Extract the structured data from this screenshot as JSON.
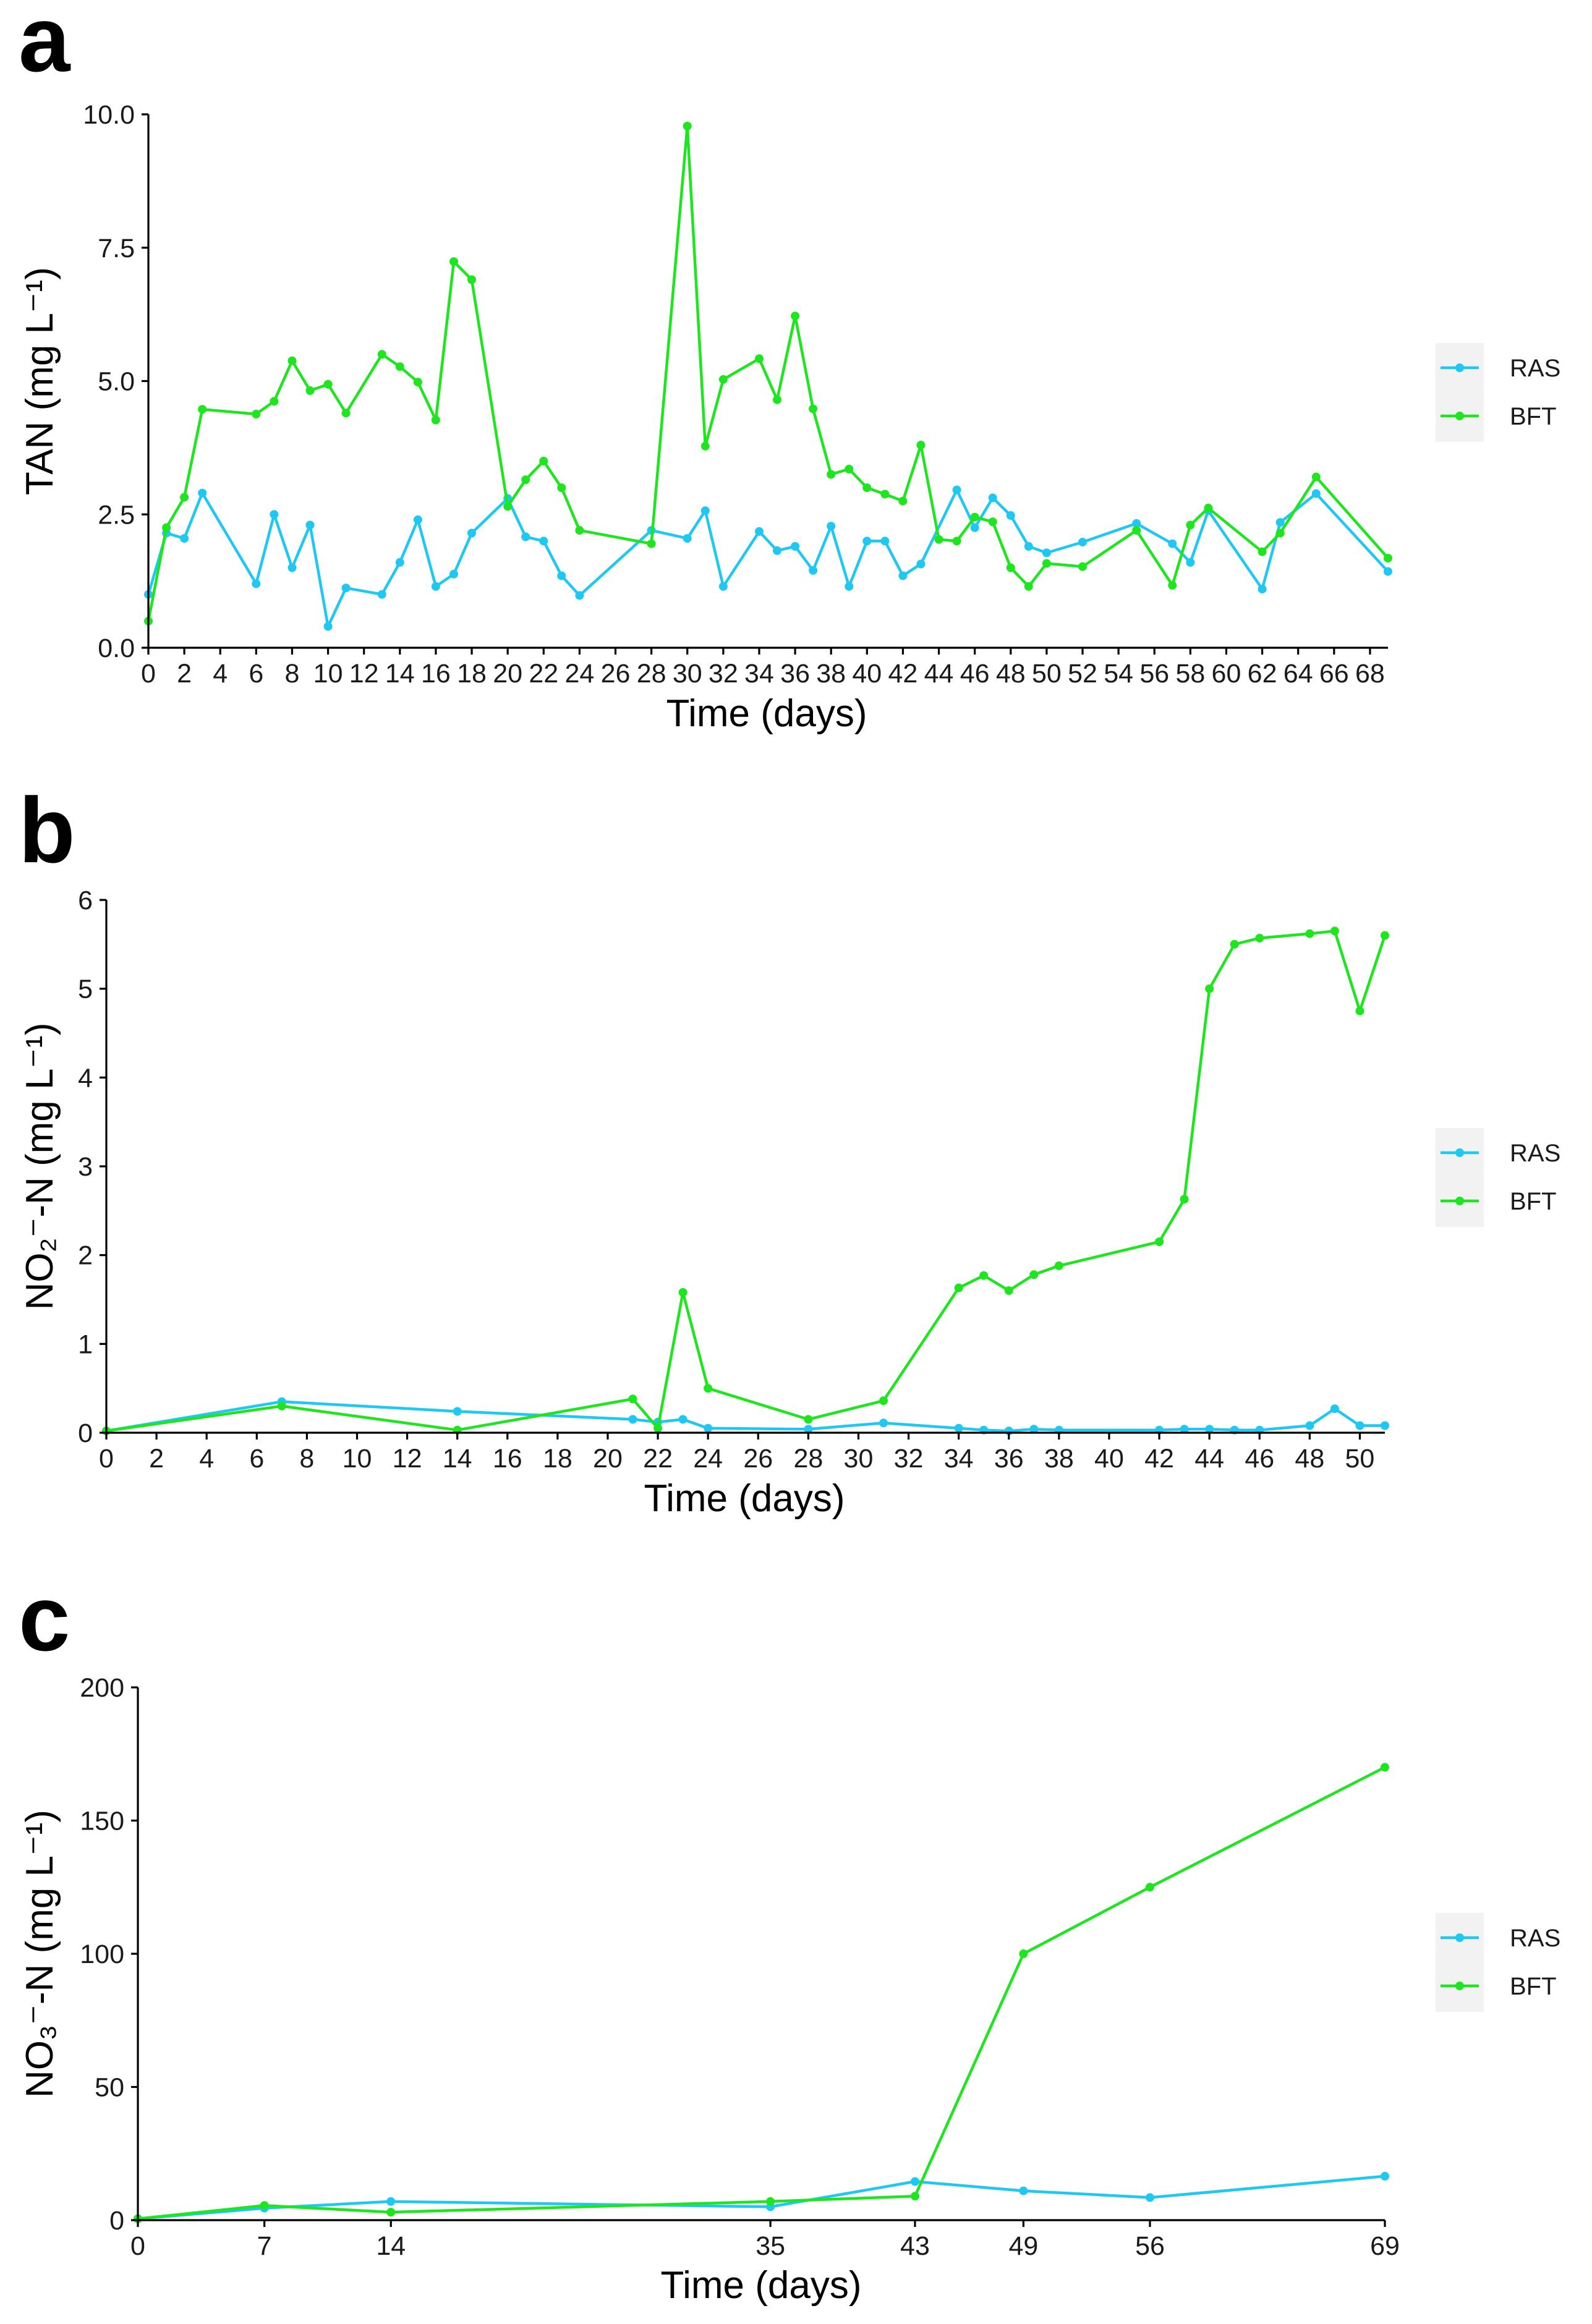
{
  "colors": {
    "RAS": "#1ec8f2",
    "BFT": "#1ee61e",
    "legend_bg": "#f2f2f2"
  },
  "chart_data": [
    {
      "panel": "a",
      "type": "line",
      "xlabel": "Time (days)",
      "ylabel": "TAN (mg L⁻¹)",
      "xlim": [
        0,
        69
      ],
      "ylim": [
        0,
        10
      ],
      "x_ticks": [
        0,
        2,
        4,
        6,
        8,
        10,
        12,
        14,
        16,
        18,
        20,
        22,
        24,
        26,
        28,
        30,
        32,
        34,
        36,
        38,
        40,
        42,
        44,
        46,
        48,
        50,
        52,
        54,
        56,
        58,
        60,
        62,
        64,
        66,
        68
      ],
      "y_ticks": [
        0,
        2.5,
        5,
        7.5,
        10
      ],
      "y_tick_labels": [
        "0.0",
        "2.5",
        "5.0",
        "7.5",
        "10.0"
      ],
      "legend": [
        "RAS",
        "BFT"
      ],
      "series": [
        {
          "name": "RAS",
          "x": [
            0,
            1,
            2,
            3,
            6,
            7,
            8,
            9,
            10,
            11,
            13,
            14,
            15,
            16,
            17,
            18,
            20,
            21,
            22,
            23,
            24,
            28,
            30,
            31,
            32,
            34,
            35,
            36,
            37,
            38,
            39,
            40,
            41,
            42,
            43,
            45,
            46,
            47,
            48,
            49,
            50,
            52,
            55,
            57,
            58,
            59,
            62,
            63,
            65,
            69
          ],
          "y": [
            1.0,
            2.15,
            2.05,
            2.9,
            1.2,
            2.5,
            1.5,
            2.3,
            0.4,
            1.12,
            1.0,
            1.6,
            2.4,
            1.15,
            1.38,
            2.15,
            2.8,
            2.08,
            2.0,
            1.35,
            0.98,
            2.2,
            2.05,
            2.57,
            1.15,
            2.18,
            1.82,
            1.9,
            1.45,
            2.28,
            1.15,
            2.0,
            2.0,
            1.35,
            1.57,
            2.96,
            2.25,
            2.81,
            2.48,
            1.9,
            1.78,
            1.98,
            2.33,
            1.95,
            1.6,
            2.57,
            1.1,
            2.35,
            2.89,
            1.43
          ]
        },
        {
          "name": "BFT",
          "x": [
            0,
            1,
            2,
            3,
            6,
            7,
            8,
            9,
            10,
            11,
            13,
            14,
            15,
            16,
            17,
            18,
            20,
            21,
            22,
            23,
            24,
            28,
            30,
            31,
            32,
            34,
            35,
            36,
            37,
            38,
            39,
            40,
            41,
            42,
            43,
            44,
            45,
            46,
            47,
            48,
            49,
            50,
            52,
            55,
            57,
            58,
            59,
            62,
            63,
            65,
            69
          ],
          "y": [
            0.5,
            2.25,
            2.82,
            4.47,
            4.38,
            4.62,
            5.38,
            4.82,
            4.94,
            4.4,
            5.5,
            5.27,
            4.98,
            4.27,
            7.24,
            6.9,
            2.65,
            3.15,
            3.5,
            3.0,
            2.2,
            1.95,
            9.78,
            3.78,
            5.03,
            5.42,
            4.65,
            6.22,
            4.48,
            3.25,
            3.35,
            3.0,
            2.88,
            2.75,
            3.8,
            2.03,
            2.0,
            2.45,
            2.36,
            1.5,
            1.15,
            1.58,
            1.52,
            2.2,
            1.17,
            2.3,
            2.62,
            1.8,
            2.15,
            3.2,
            1.68
          ]
        }
      ]
    },
    {
      "panel": "b",
      "type": "line",
      "xlabel": "Time (days)",
      "ylabel": "NO₂⁻-N (mg L⁻¹)",
      "xlim": [
        0,
        51
      ],
      "ylim": [
        0,
        6
      ],
      "x_ticks": [
        0,
        2,
        4,
        6,
        8,
        10,
        12,
        14,
        16,
        18,
        20,
        22,
        24,
        26,
        28,
        30,
        32,
        34,
        36,
        38,
        40,
        42,
        44,
        46,
        48,
        50
      ],
      "y_ticks": [
        0,
        1,
        2,
        3,
        4,
        5,
        6
      ],
      "y_tick_labels": [
        "0",
        "1",
        "2",
        "3",
        "4",
        "5",
        "6"
      ],
      "legend": [
        "RAS",
        "BFT"
      ],
      "series": [
        {
          "name": "RAS",
          "x": [
            0,
            7,
            14,
            21,
            22,
            23,
            24,
            28,
            31,
            34,
            35,
            36,
            37,
            38,
            42,
            43,
            44,
            45,
            46,
            48,
            49,
            50,
            51
          ],
          "y": [
            0.02,
            0.35,
            0.24,
            0.15,
            0.12,
            0.15,
            0.05,
            0.04,
            0.11,
            0.05,
            0.03,
            0.02,
            0.04,
            0.03,
            0.03,
            0.04,
            0.04,
            0.03,
            0.03,
            0.08,
            0.27,
            0.08,
            0.08
          ]
        },
        {
          "name": "BFT",
          "x": [
            0,
            7,
            14,
            21,
            22,
            23,
            24,
            28,
            31,
            34,
            35,
            36,
            37,
            38,
            42,
            43,
            44,
            45,
            46,
            48,
            49,
            50,
            51
          ],
          "y": [
            0.02,
            0.3,
            0.03,
            0.38,
            0.05,
            1.58,
            0.5,
            0.15,
            0.36,
            1.63,
            1.77,
            1.6,
            1.78,
            1.88,
            2.15,
            2.63,
            5.0,
            5.5,
            5.57,
            5.62,
            5.65,
            4.75,
            5.6
          ]
        }
      ]
    },
    {
      "panel": "c",
      "type": "line",
      "xlabel": "Time (days)",
      "ylabel": "NO₃⁻-N (mg L⁻¹)",
      "xlim": [
        0,
        69
      ],
      "ylim": [
        0,
        200
      ],
      "x_ticks": [
        0,
        7,
        14,
        35,
        43,
        49,
        56,
        69
      ],
      "y_ticks": [
        0,
        50,
        100,
        150,
        200
      ],
      "y_tick_labels": [
        "0",
        "50",
        "100",
        "150",
        "200"
      ],
      "legend": [
        "RAS",
        "BFT"
      ],
      "series": [
        {
          "name": "RAS",
          "x": [
            0,
            7,
            14,
            35,
            43,
            49,
            56,
            69
          ],
          "y": [
            0.5,
            4.5,
            7.0,
            5.0,
            14.5,
            11.0,
            8.5,
            16.5
          ]
        },
        {
          "name": "BFT",
          "x": [
            0,
            7,
            14,
            35,
            43,
            49,
            56,
            69
          ],
          "y": [
            0.5,
            5.5,
            3.0,
            7.0,
            9.0,
            100.0,
            125.0,
            170.0
          ]
        }
      ]
    }
  ]
}
